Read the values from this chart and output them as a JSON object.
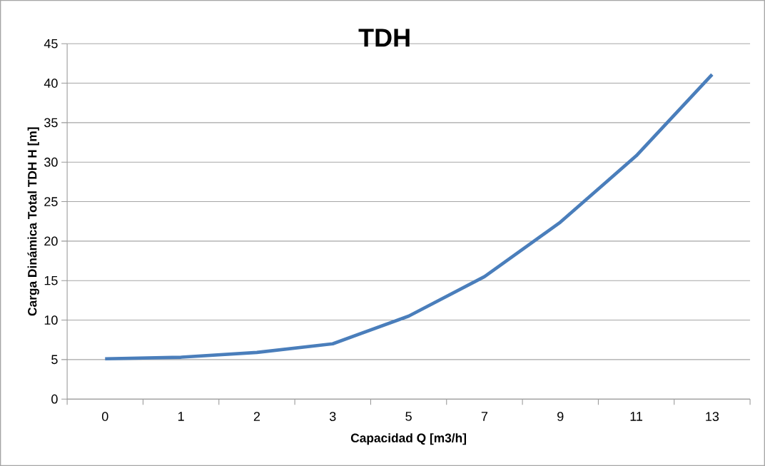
{
  "chart_data": {
    "type": "line",
    "title": "TDH",
    "xlabel": "Capacidad Q [m3/h]",
    "ylabel": "Carga Dinámica Total TDH H [m]",
    "categories": [
      "0",
      "1",
      "2",
      "3",
      "5",
      "7",
      "9",
      "11",
      "13"
    ],
    "series": [
      {
        "color": "#4a7ebb",
        "values": [
          5.1,
          5.3,
          5.9,
          7.0,
          10.5,
          15.5,
          22.4,
          30.8,
          41.1
        ]
      }
    ],
    "ylim": [
      0,
      45
    ],
    "yticks": [
      0,
      5,
      10,
      15,
      20,
      25,
      30,
      35,
      40,
      45
    ],
    "grid": "y",
    "marker": "none",
    "line_style": "solid"
  }
}
